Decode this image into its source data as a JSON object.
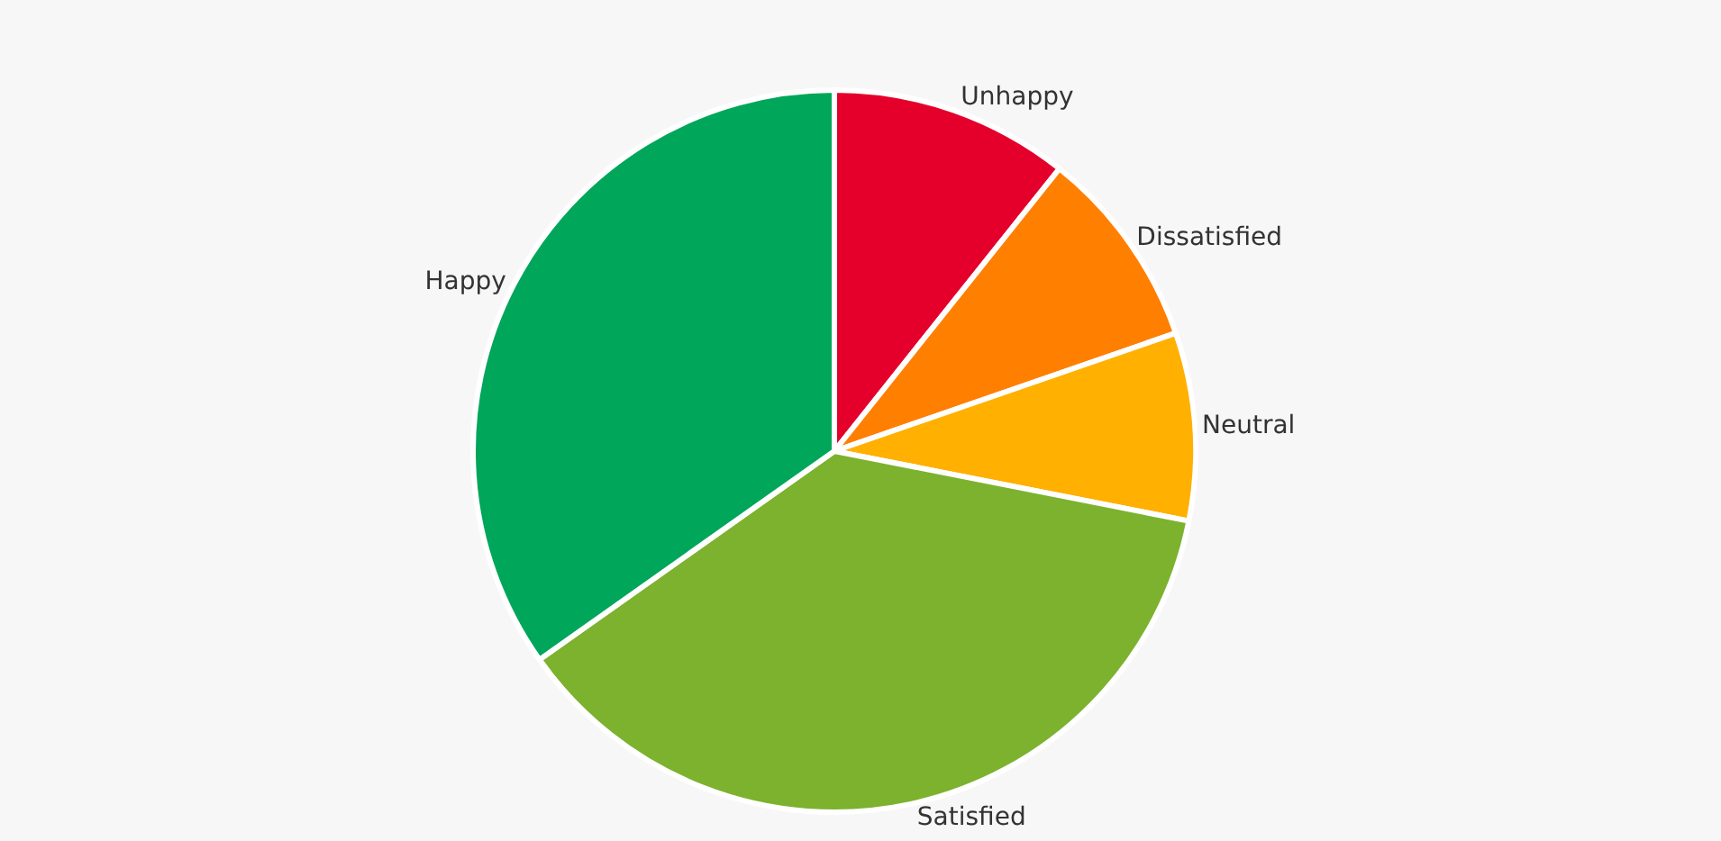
{
  "chart_data": {
    "type": "pie",
    "categories": [
      "Unhappy",
      "Dissatisfied",
      "Neutral",
      "Satisfied",
      "Happy"
    ],
    "values": [
      10.7,
      9,
      8.4,
      37.1,
      34.8
    ],
    "colors": [
      "#e4002b",
      "#ff7f00",
      "#ffb000",
      "#7cb22e",
      "#00a65a"
    ],
    "legend": false
  }
}
